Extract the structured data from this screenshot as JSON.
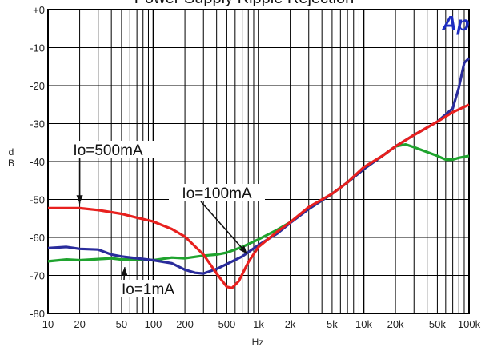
{
  "chart_data": {
    "type": "line",
    "title": "Power Supply Ripple Rejection",
    "xlabel": "Hz",
    "ylabel": "d\nB",
    "xscale": "log",
    "xlim": [
      10,
      100000
    ],
    "ylim": [
      -80,
      0
    ],
    "grid": true,
    "x_ticks": [
      "10",
      "20",
      "50",
      "100",
      "200",
      "500",
      "1k",
      "2k",
      "5k",
      "10k",
      "20k",
      "50k",
      "100k"
    ],
    "x_tick_values": [
      10,
      20,
      50,
      100,
      200,
      500,
      1000,
      2000,
      5000,
      10000,
      20000,
      50000,
      100000
    ],
    "y_ticks": [
      "+0",
      "-10",
      "-20",
      "-30",
      "-40",
      "-50",
      "-60",
      "-70",
      "-80"
    ],
    "y_tick_values": [
      0,
      -10,
      -20,
      -30,
      -40,
      -50,
      -60,
      -70,
      -80
    ],
    "series": [
      {
        "name": "Io=500mA",
        "color": "#e8201e",
        "x": [
          10,
          20,
          30,
          50,
          70,
          100,
          150,
          200,
          300,
          400,
          500,
          560,
          650,
          800,
          1000,
          1500,
          2000,
          3000,
          5000,
          7000,
          10000,
          15000,
          20000,
          30000,
          50000,
          70000,
          100000
        ],
        "y": [
          -52.3,
          -52.3,
          -52.8,
          -53.8,
          -54.8,
          -55.8,
          -57.8,
          -59.8,
          -64.5,
          -69.5,
          -73.0,
          -73.3,
          -71.5,
          -66.5,
          -62.5,
          -58.5,
          -56.0,
          -52.0,
          -48.5,
          -45.5,
          -41.5,
          -38.5,
          -36.0,
          -33.0,
          -29.5,
          -27.0,
          -25.0
        ]
      },
      {
        "name": "Io=100mA",
        "color": "#2a2c9c",
        "x": [
          10,
          15,
          20,
          30,
          40,
          50,
          70,
          100,
          150,
          200,
          250,
          300,
          400,
          500,
          700,
          1000,
          1500,
          2000,
          3000,
          5000,
          7000,
          10000,
          15000,
          20000,
          30000,
          50000,
          70000,
          80000,
          90000,
          100000
        ],
        "y": [
          -62.8,
          -62.5,
          -63.0,
          -63.2,
          -64.5,
          -65.0,
          -65.5,
          -66.0,
          -66.8,
          -68.5,
          -69.3,
          -69.5,
          -68.3,
          -67.0,
          -65.0,
          -62.0,
          -59.0,
          -56.2,
          -52.5,
          -48.5,
          -45.5,
          -42.0,
          -38.5,
          -36.0,
          -33.0,
          -29.5,
          -26.0,
          -20.5,
          -14.0,
          -12.8
        ]
      },
      {
        "name": "Io=1mA",
        "color": "#1fa32e",
        "x": [
          10,
          15,
          20,
          30,
          40,
          50,
          70,
          100,
          150,
          200,
          300,
          400,
          500,
          700,
          1000,
          1500,
          2000,
          3000,
          5000,
          7000,
          10000,
          15000,
          20000,
          25000,
          30000,
          50000,
          60000,
          70000,
          80000,
          100000
        ],
        "y": [
          -66.3,
          -65.8,
          -66.0,
          -65.7,
          -65.5,
          -65.8,
          -65.8,
          -66.0,
          -65.3,
          -65.5,
          -64.8,
          -64.5,
          -64.0,
          -62.5,
          -60.5,
          -58.0,
          -56.0,
          -52.5,
          -48.5,
          -45.5,
          -42.0,
          -38.5,
          -36.0,
          -35.5,
          -36.2,
          -38.5,
          -39.5,
          -39.5,
          -39.0,
          -38.5
        ]
      }
    ],
    "annotations": [
      {
        "text": "Io=500mA",
        "series": "Io=500mA",
        "point": [
          20,
          -52.3
        ]
      },
      {
        "text": "Io=100mA",
        "series": "Io=100mA",
        "point": [
          780,
          -63.5
        ]
      },
      {
        "text": "Io=1mA",
        "series": "Io=1mA",
        "point": [
          50,
          -67.0
        ]
      }
    ],
    "logo": "Ap"
  }
}
